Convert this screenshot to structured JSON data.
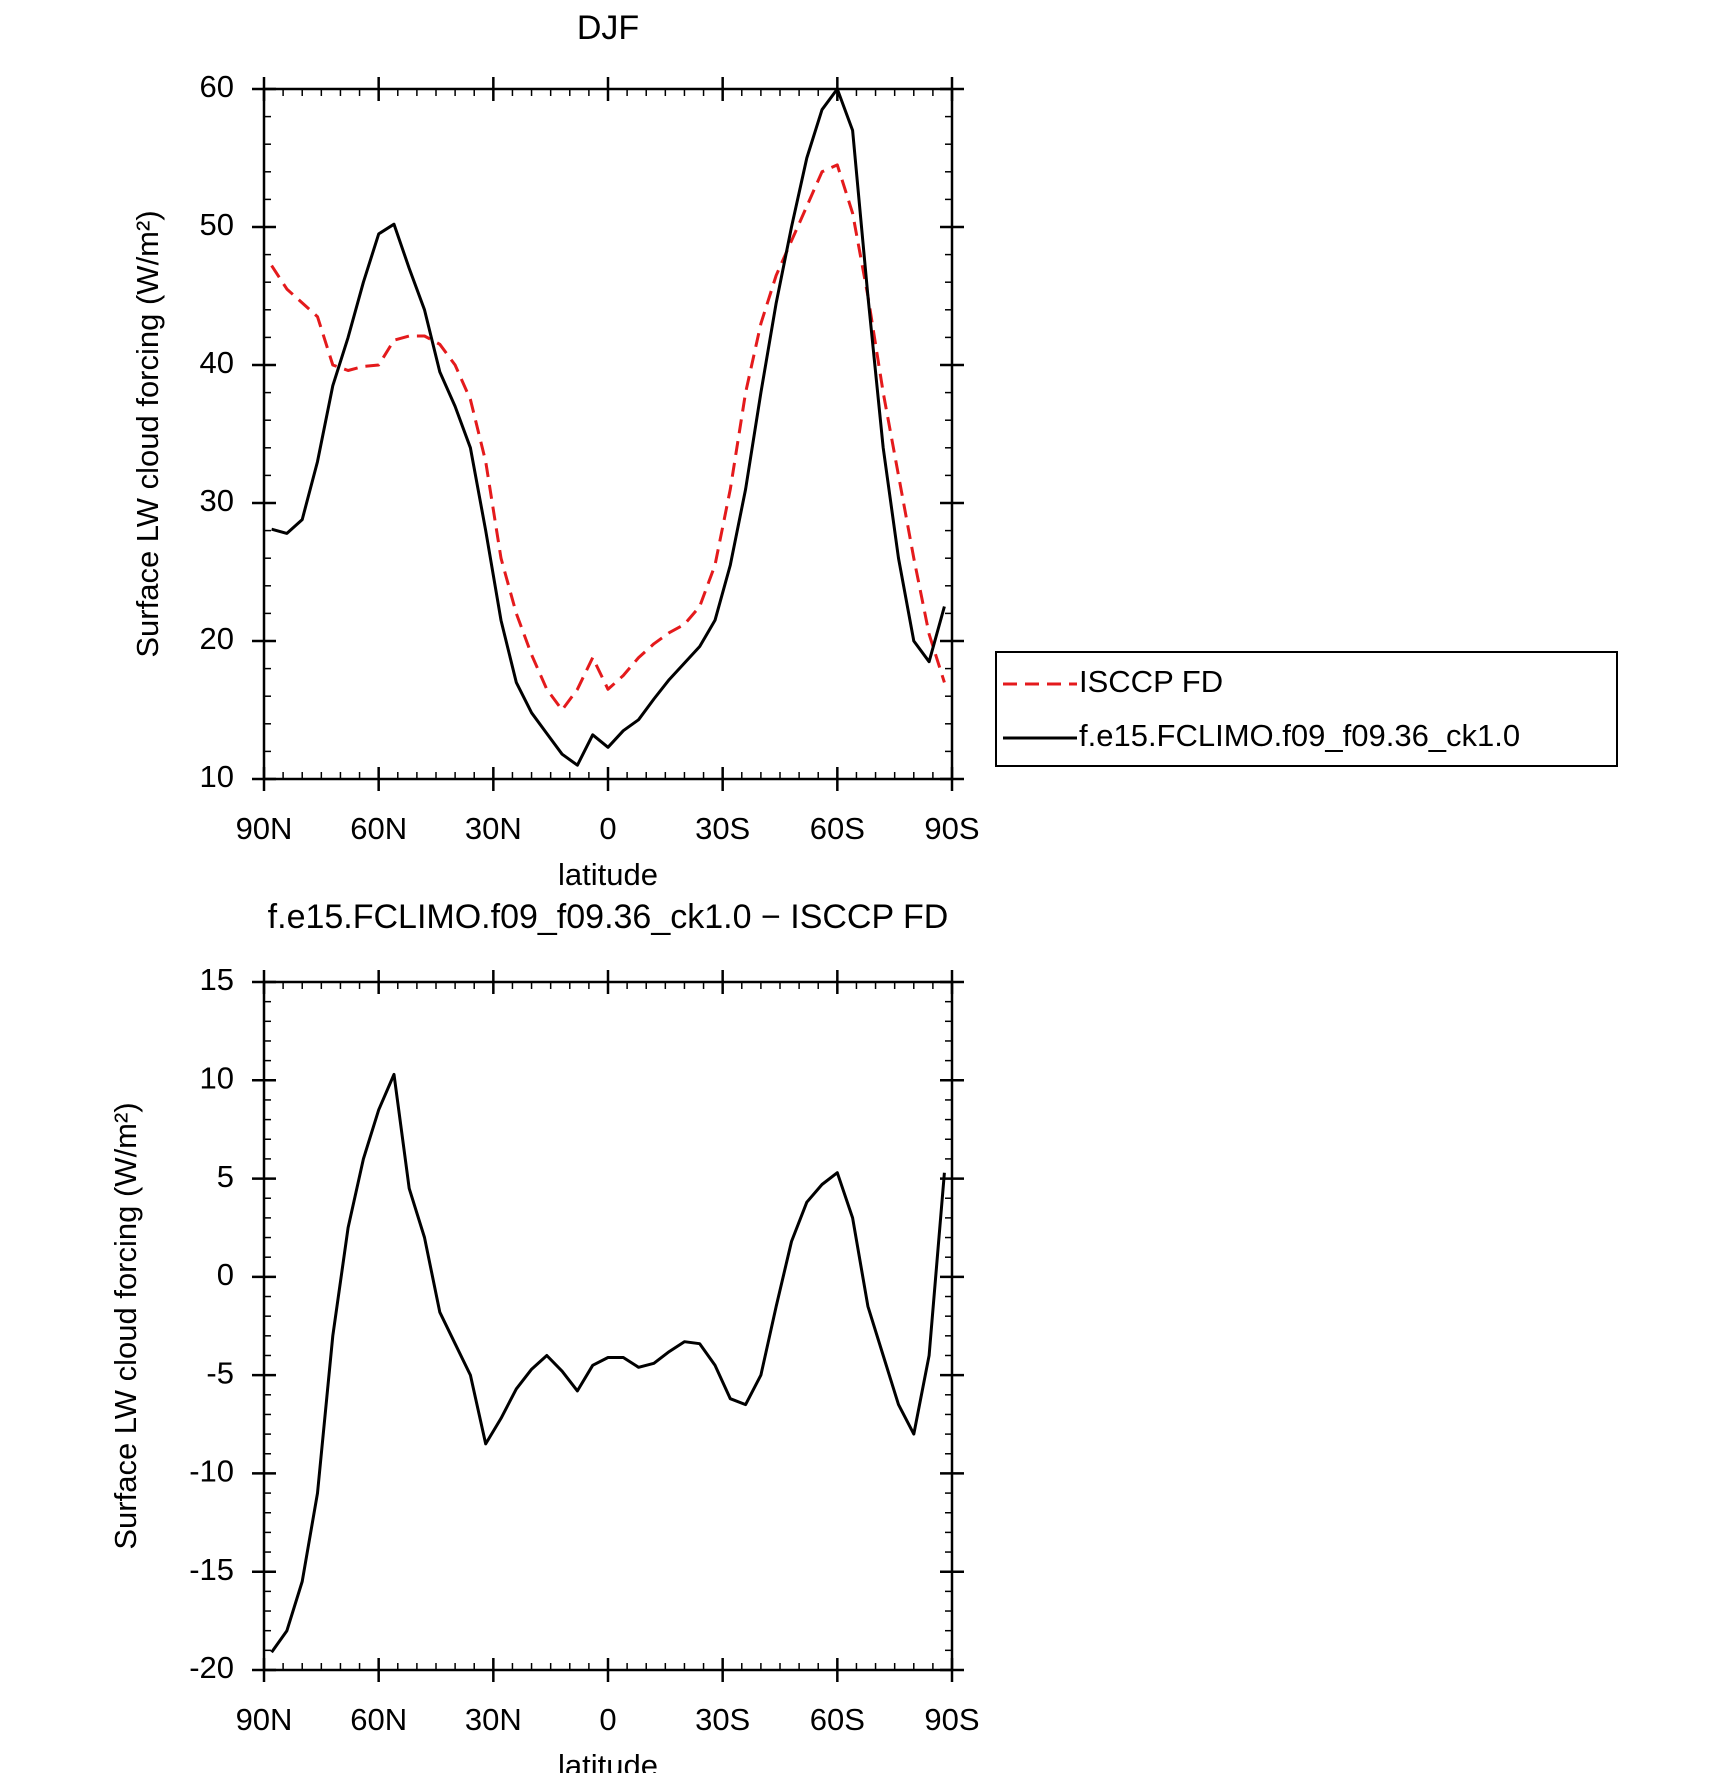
{
  "chart_data": [
    {
      "type": "line",
      "title": "DJF",
      "xlabel": "latitude",
      "ylabel": "Surface LW cloud forcing (W/m²)",
      "x": [
        88,
        84,
        80,
        76,
        72,
        68,
        64,
        60,
        56,
        52,
        48,
        44,
        40,
        36,
        32,
        28,
        24,
        20,
        16,
        12,
        8,
        4,
        0,
        -4,
        -8,
        -12,
        -16,
        -20,
        -24,
        -28,
        -32,
        -36,
        -40,
        -44,
        -48,
        -52,
        -56,
        -60,
        -64,
        -68,
        -72,
        -76,
        -80,
        -84,
        -88
      ],
      "xlim": [
        90,
        -90
      ],
      "xticks": [
        {
          "value": 90,
          "label": "90N"
        },
        {
          "value": 60,
          "label": "60N"
        },
        {
          "value": 30,
          "label": "30N"
        },
        0,
        {
          "value": -30,
          "label": "30S"
        },
        {
          "value": -60,
          "label": "60S"
        },
        {
          "value": -90,
          "label": "90S"
        }
      ],
      "ylim": [
        10,
        60
      ],
      "yticks": [
        10,
        20,
        30,
        40,
        50,
        60
      ],
      "legend_position": "right",
      "series": [
        {
          "name": "ISCCP FD",
          "color": "#e41a1c",
          "dashed": true,
          "values": [
            47.2,
            45.5,
            44.5,
            43.5,
            40,
            39.6,
            39.9,
            40,
            41.8,
            42.1,
            42.1,
            41.5,
            40,
            37.5,
            33,
            26,
            22,
            19,
            16.5,
            15,
            16.5,
            18.8,
            16.5,
            17.5,
            18.8,
            19.8,
            20.6,
            21.2,
            22.5,
            25.5,
            31,
            38,
            43,
            46.5,
            49,
            51.5,
            54,
            54.5,
            51,
            45,
            38,
            32,
            26,
            20.5,
            17
          ]
        },
        {
          "name": "f.e15.FCLIMO.f09_f09.36_ck1.0",
          "color": "#000000",
          "dashed": false,
          "values": [
            28.1,
            27.8,
            28.8,
            33,
            38.5,
            42,
            46,
            49.5,
            50.2,
            47,
            44,
            39.5,
            37,
            34,
            28,
            21.5,
            17,
            14.8,
            13.3,
            11.8,
            11,
            13.2,
            12.3,
            13.5,
            14.3,
            15.8,
            17.2,
            18.4,
            19.6,
            21.5,
            25.5,
            31,
            38,
            44.5,
            50,
            55,
            58.5,
            60,
            57,
            45,
            34,
            26,
            20,
            18.5,
            22.5
          ]
        }
      ]
    },
    {
      "type": "line",
      "title": "f.e15.FCLIMO.f09_f09.36_ck1.0 − ISCCP FD",
      "xlabel": "latitude",
      "ylabel": "Surface LW cloud forcing (W/m²)",
      "x": [
        88,
        84,
        80,
        76,
        72,
        68,
        64,
        60,
        56,
        52,
        48,
        44,
        40,
        36,
        32,
        28,
        24,
        20,
        16,
        12,
        8,
        4,
        0,
        -4,
        -8,
        -12,
        -16,
        -20,
        -24,
        -28,
        -32,
        -36,
        -40,
        -44,
        -48,
        -52,
        -56,
        -60,
        -64,
        -68,
        -72,
        -76,
        -80,
        -84,
        -88
      ],
      "xlim": [
        90,
        -90
      ],
      "xticks": [
        {
          "value": 90,
          "label": "90N"
        },
        {
          "value": 60,
          "label": "60N"
        },
        {
          "value": 30,
          "label": "30N"
        },
        0,
        {
          "value": -30,
          "label": "30S"
        },
        {
          "value": -60,
          "label": "60S"
        },
        {
          "value": -90,
          "label": "90S"
        }
      ],
      "ylim": [
        -20,
        15
      ],
      "yticks": [
        -20,
        -15,
        -10,
        -5,
        0,
        5,
        10,
        15
      ],
      "series": [
        {
          "color": "#000000",
          "dashed": false,
          "values": [
            -19.1,
            -18,
            -15.5,
            -11,
            -3,
            2.5,
            6,
            8.5,
            10.3,
            4.5,
            2,
            -1.8,
            -3.4,
            -5,
            -8.5,
            -7.2,
            -5.7,
            -4.7,
            -4,
            -4.8,
            -5.8,
            -4.5,
            -4.1,
            -4.1,
            -4.6,
            -4.4,
            -3.8,
            -3.3,
            -3.4,
            -4.5,
            -6.2,
            -6.5,
            -5,
            -1.5,
            1.8,
            3.8,
            4.7,
            5.3,
            3,
            -1.5,
            -4,
            -6.5,
            -8,
            -4,
            5.3
          ]
        }
      ]
    }
  ]
}
